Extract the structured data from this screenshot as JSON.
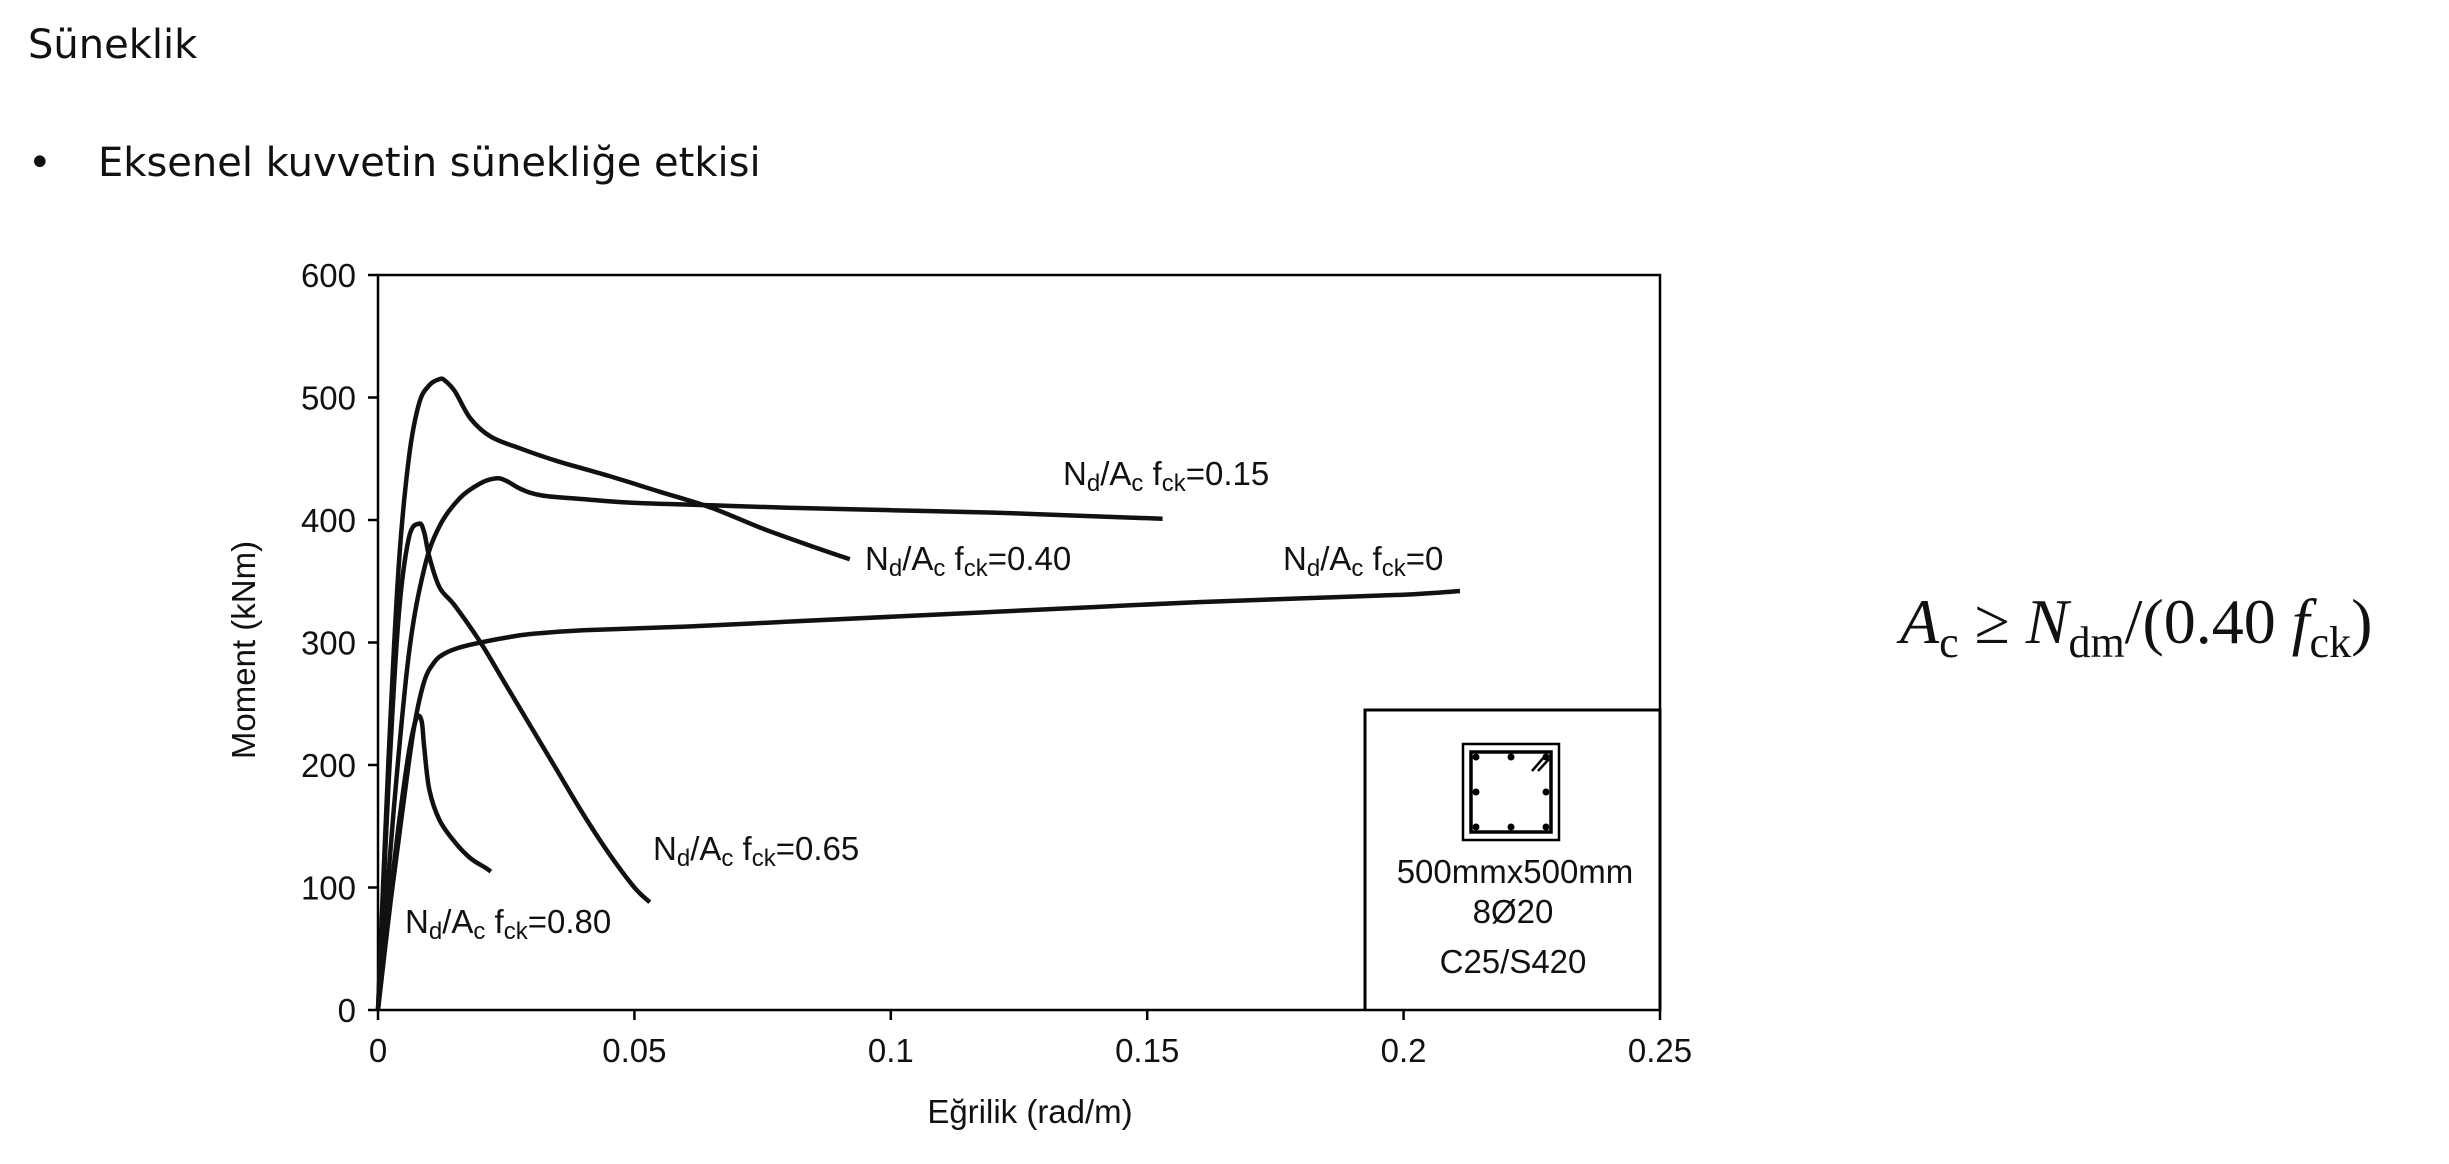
{
  "slide": {
    "title": "Süneklik",
    "bullet_symbol": "•",
    "bullet_text": "Eksenel kuvvetin sünekliğe etkisi"
  },
  "formula": {
    "lhs_symbol": "A",
    "lhs_sub": "c",
    "relation": "≥",
    "n_symbol": "N",
    "n_sub": "dm",
    "middle": "/(0.40",
    "f_symbol": "f",
    "f_sub": "ck",
    "close": ")"
  },
  "chart_data": {
    "type": "line",
    "xlabel": "Eğrilik (rad/m)",
    "ylabel": "Moment (kNm)",
    "xlim": [
      0,
      0.25
    ],
    "ylim": [
      0,
      600
    ],
    "xticks": [
      0,
      0.05,
      0.1,
      0.15,
      0.2,
      0.25
    ],
    "xtick_labels": [
      "0",
      "0.05",
      "0.1",
      "0.15",
      "0.2",
      "0.25"
    ],
    "yticks": [
      0,
      100,
      200,
      300,
      400,
      500,
      600
    ],
    "ytick_labels": [
      "0",
      "100",
      "200",
      "300",
      "400",
      "500",
      "600"
    ],
    "grid": false,
    "series": [
      {
        "label_parts": {
          "n": "N",
          "n_sub": "d",
          "sep": "/A",
          "a_sub": "c",
          "f": "f",
          "f_sub": "ck",
          "value": "=0"
        },
        "x": [
          0,
          0.0025,
          0.005,
          0.007,
          0.009,
          0.011,
          0.013,
          0.016,
          0.02,
          0.025,
          0.03,
          0.04,
          0.06,
          0.08,
          0.1,
          0.12,
          0.14,
          0.16,
          0.18,
          0.2,
          0.211
        ],
        "y": [
          0,
          90,
          170,
          230,
          268,
          284,
          291,
          296,
          300,
          304,
          307,
          310,
          313,
          317,
          321,
          325,
          329,
          333,
          336,
          339,
          342
        ]
      },
      {
        "label_parts": {
          "n": "N",
          "n_sub": "d",
          "sep": "/A",
          "a_sub": "c",
          "f": "f",
          "f_sub": "ck",
          "value": "=0.15"
        },
        "x": [
          0,
          0.003,
          0.006,
          0.009,
          0.012,
          0.016,
          0.02,
          0.023,
          0.025,
          0.028,
          0.032,
          0.04,
          0.05,
          0.065,
          0.08,
          0.1,
          0.12,
          0.14,
          0.153
        ],
        "y": [
          0,
          160,
          290,
          360,
          395,
          418,
          430,
          434,
          432,
          425,
          420,
          417,
          414,
          412,
          410,
          408,
          406,
          403,
          401
        ]
      },
      {
        "label_parts": {
          "n": "N",
          "n_sub": "d",
          "sep": "/A",
          "a_sub": "c",
          "f": "f",
          "f_sub": "ck",
          "value": "=0.40"
        },
        "x": [
          0,
          0.002,
          0.004,
          0.006,
          0.008,
          0.01,
          0.012,
          0.013,
          0.015,
          0.018,
          0.022,
          0.028,
          0.035,
          0.045,
          0.055,
          0.065,
          0.075,
          0.085,
          0.092
        ],
        "y": [
          0,
          200,
          360,
          450,
          495,
          510,
          515,
          514,
          505,
          483,
          468,
          458,
          448,
          436,
          423,
          410,
          393,
          378,
          368
        ]
      },
      {
        "label_parts": {
          "n": "N",
          "n_sub": "d",
          "sep": "/A",
          "a_sub": "c",
          "f": "f",
          "f_sub": "ck",
          "value": "=0.65"
        },
        "x": [
          0,
          0.002,
          0.004,
          0.006,
          0.008,
          0.009,
          0.01,
          0.012,
          0.015,
          0.02,
          0.025,
          0.03,
          0.035,
          0.04,
          0.045,
          0.05,
          0.053
        ],
        "y": [
          0,
          180,
          320,
          385,
          397,
          390,
          370,
          345,
          330,
          300,
          265,
          230,
          195,
          160,
          128,
          100,
          88
        ]
      },
      {
        "label_parts": {
          "n": "N",
          "n_sub": "d",
          "sep": "/A",
          "a_sub": "c",
          "f": "f",
          "f_sub": "ck",
          "value": "=0.80"
        },
        "x": [
          0,
          0.002,
          0.004,
          0.006,
          0.0075,
          0.0085,
          0.009,
          0.01,
          0.012,
          0.015,
          0.018,
          0.021,
          0.022
        ],
        "y": [
          0,
          80,
          150,
          210,
          238,
          236,
          215,
          180,
          155,
          137,
          124,
          116,
          113
        ]
      }
    ],
    "inset": {
      "dimension": "500mmx500mm",
      "reinforcement": "8Ø20",
      "materials": "C25/S420"
    }
  }
}
